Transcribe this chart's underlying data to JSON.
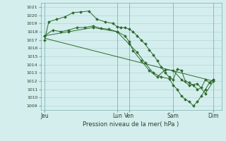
{
  "bg_color": "#d4eeee",
  "grid_color": "#aad0d0",
  "line_color": "#2d6a2d",
  "marker_color": "#2d6a2d",
  "xlabel_text": "Pression niveau de la mer( hPa )",
  "ylim": [
    1008.5,
    1021.5
  ],
  "yticks": [
    1009,
    1010,
    1011,
    1012,
    1013,
    1014,
    1015,
    1016,
    1017,
    1018,
    1019,
    1020,
    1021
  ],
  "xtick_labels": [
    "Jeu",
    "Lun",
    "Ven",
    "Sam",
    "Dim"
  ],
  "xtick_positions": [
    0,
    9,
    10.5,
    16,
    21
  ],
  "xlim": [
    -0.5,
    22
  ],
  "vline_positions": [
    0,
    9,
    10.5,
    16,
    21
  ],
  "series1_x": [
    0,
    0.5,
    1.5,
    2.5,
    3.5,
    4.5,
    5.5,
    6.5,
    7.5,
    8.5,
    9,
    9.5,
    10,
    10.5,
    11,
    11.5,
    12,
    12.5,
    13,
    13.5,
    14,
    14.5,
    15,
    15.5,
    16,
    16.5,
    17,
    17.5,
    18,
    18.5,
    19,
    19.5,
    20,
    20.5,
    21
  ],
  "series1_y": [
    1017.0,
    1019.2,
    1019.5,
    1019.8,
    1020.3,
    1020.4,
    1020.5,
    1019.5,
    1019.2,
    1019.0,
    1018.6,
    1018.5,
    1018.5,
    1018.3,
    1018.0,
    1017.5,
    1017.0,
    1016.5,
    1015.8,
    1015.2,
    1014.5,
    1013.7,
    1013.0,
    1012.5,
    1012.2,
    1013.5,
    1013.3,
    1012.0,
    1011.8,
    1011.5,
    1011.0,
    1011.2,
    1012.2,
    1011.8,
    1012.2
  ],
  "series2_x": [
    0,
    1,
    2,
    3,
    4,
    5,
    6,
    7,
    8,
    9,
    10,
    10.5,
    11,
    12,
    13,
    14,
    15,
    16,
    17,
    18,
    19,
    20,
    21
  ],
  "series2_y": [
    1017.5,
    1018.2,
    1018.0,
    1018.2,
    1018.5,
    1018.5,
    1018.7,
    1018.4,
    1018.3,
    1018.0,
    1017.5,
    1016.8,
    1015.7,
    1014.5,
    1013.3,
    1012.5,
    1013.4,
    1013.3,
    1012.2,
    1011.5,
    1011.7,
    1010.5,
    1012.0
  ],
  "series3_x": [
    0,
    21
  ],
  "series3_y": [
    1017.2,
    1012.0
  ],
  "series4_x": [
    0,
    3,
    6,
    9,
    10.5,
    11.5,
    12.5,
    13.5,
    14.5,
    15.5,
    16,
    16.5,
    17,
    17.5,
    18,
    18.5,
    19,
    19.5,
    20,
    20.5,
    21
  ],
  "series4_y": [
    1017.5,
    1018.0,
    1018.5,
    1018.0,
    1016.5,
    1015.5,
    1014.2,
    1013.0,
    1012.5,
    1012.3,
    1011.5,
    1011.0,
    1010.2,
    1009.8,
    1009.5,
    1009.0,
    1009.5,
    1010.2,
    1011.0,
    1011.8,
    1012.2
  ]
}
